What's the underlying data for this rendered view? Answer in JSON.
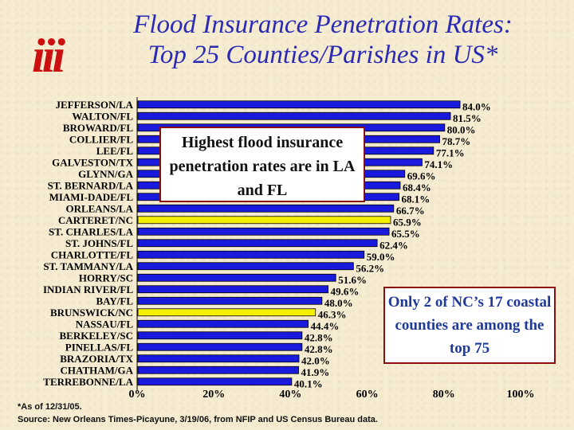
{
  "logo": {
    "text": "iii"
  },
  "title": {
    "line1": "Flood Insurance Penetration Rates:",
    "line2": "Top 25 Counties/Parishes in US*"
  },
  "callouts": {
    "top": "Highest flood insurance penetration rates are in LA and FL",
    "bottom": "Only 2 of NC’s 17 coastal counties are among the top 75"
  },
  "footnote": "*As of 12/31/05.",
  "source": "Source: New Orleans Times-Picayune, 3/19/06, from NFIP and US Census Bureau data.",
  "colors": {
    "bar_default": "#1a1adc",
    "bar_highlight": "#f4f000",
    "bar_outline": "#000000",
    "title": "#2a2ab4",
    "logo": "#cc1010"
  },
  "chart_data": {
    "type": "bar",
    "orientation": "horizontal",
    "categories": [
      "JEFFERSON/LA",
      "WALTON/FL",
      "BROWARD/FL",
      "COLLIER/FL",
      "LEE/FL",
      "GALVESTON/TX",
      "GLYNN/GA",
      "ST. BERNARD/LA",
      "MIAMI-DADE/FL",
      "ORLEANS/LA",
      "CARTERET/NC",
      "ST. CHARLES/LA",
      "ST. JOHNS/FL",
      "CHARLOTTE/FL",
      "ST. TAMMANY/LA",
      "HORRY/SC",
      "INDIAN RIVER/FL",
      "BAY/FL",
      "BRUNSWICK/NC",
      "NASSAU/FL",
      "BERKELEY/SC",
      "PINELLAS/FL",
      "BRAZORIA/TX",
      "CHATHAM/GA",
      "TERREBONNE/LA"
    ],
    "values": [
      84.0,
      81.5,
      80.0,
      78.7,
      77.1,
      74.1,
      69.6,
      68.4,
      68.1,
      66.7,
      65.9,
      65.5,
      62.4,
      59.0,
      56.2,
      51.6,
      49.6,
      48.0,
      46.3,
      44.4,
      42.8,
      42.8,
      42.0,
      41.9,
      40.1
    ],
    "value_labels": [
      "84.0%",
      "81.5%",
      "80.0%",
      "78.7%",
      "77.1%",
      "74.1%",
      "69.6%",
      "68.4%",
      "68.1%",
      "66.7%",
      "65.9%",
      "65.5%",
      "62.4%",
      "59.0%",
      "56.2%",
      "51.6%",
      "49.6%",
      "48.0%",
      "46.3%",
      "44.4%",
      "42.8%",
      "42.8%",
      "42.0%",
      "41.9%",
      "40.1%"
    ],
    "highlighted": [
      "CARTERET/NC",
      "BRUNSWICK/NC"
    ],
    "x_ticks": [
      0,
      20,
      40,
      60,
      80,
      100
    ],
    "x_tick_labels": [
      "0%",
      "20%",
      "40%",
      "60%",
      "80%",
      "100%"
    ],
    "xlim": [
      0,
      100
    ],
    "grid": false,
    "legend": "none"
  }
}
